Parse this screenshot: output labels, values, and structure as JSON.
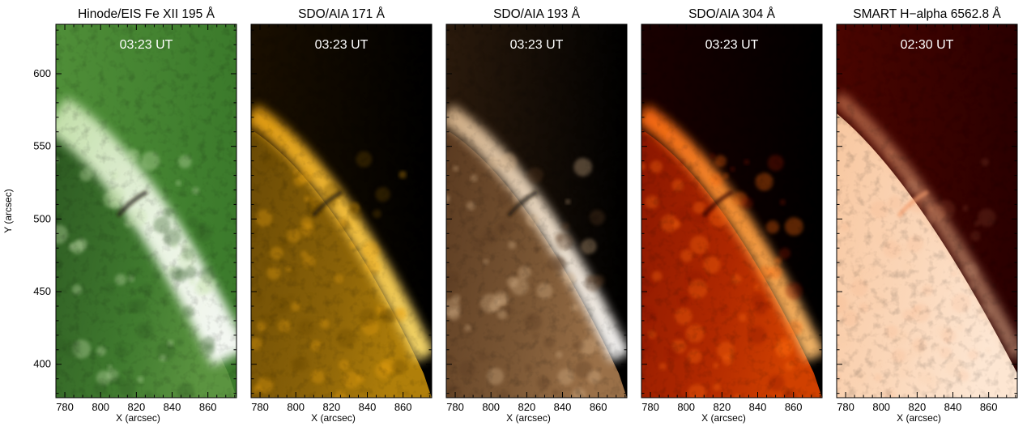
{
  "figure": {
    "panels": [
      {
        "title": "Hinode/EIS Fe XII 195 Å",
        "time": "03:23 UT",
        "palette": "eis",
        "show_ylabel": true
      },
      {
        "title": "SDO/AIA 171 Å",
        "time": "03:23 UT",
        "palette": "aia171",
        "show_ylabel": false
      },
      {
        "title": "SDO/AIA 193 Å",
        "time": "03:23 UT",
        "palette": "aia193",
        "show_ylabel": false
      },
      {
        "title": "SDO/AIA 304 Å",
        "time": "03:23 UT",
        "palette": "aia304",
        "show_ylabel": false
      },
      {
        "title": "SMART H−alpha 6562.8 Å",
        "time": "02:30 UT",
        "palette": "halpha",
        "show_ylabel": false
      }
    ],
    "x_axis": {
      "label": "X (arcsec)",
      "ticks": [
        780,
        800,
        820,
        840,
        860
      ],
      "range": [
        775,
        876
      ]
    },
    "y_axis": {
      "label": "Y (arcsec)",
      "ticks": [
        400,
        450,
        500,
        550,
        600
      ],
      "range": [
        377,
        634
      ]
    },
    "palettes": {
      "eis": {
        "disk": [
          "#2d5a22",
          "#3f7a2e",
          "#5b9440"
        ],
        "bright": [
          "#c9e3b0",
          "#f2f9ea",
          "#ffffff"
        ],
        "space": [
          "#3b7a2b",
          "#4f8e38"
        ]
      },
      "aia171": {
        "disk": [
          "#6a4a05",
          "#8a6208",
          "#b07f0a"
        ],
        "bright": [
          "#e8a010",
          "#ffc840",
          "#ffe070"
        ],
        "space": [
          "#000000",
          "#1a0f00"
        ]
      },
      "aia193": {
        "disk": [
          "#5a3a20",
          "#7a5634",
          "#9a7048"
        ],
        "bright": [
          "#d8b48a",
          "#f3e2cc",
          "#ffffff"
        ],
        "space": [
          "#000000",
          "#2a1a0c"
        ]
      },
      "aia304": {
        "disk": [
          "#8a1600",
          "#b02800",
          "#d04000"
        ],
        "bright": [
          "#ff6a10",
          "#ff9a3a",
          "#ffc070"
        ],
        "space": [
          "#000000",
          "#1a0000"
        ]
      },
      "halpha": {
        "disk": [
          "#f8c7a0",
          "#fbd8bb",
          "#fde6d2"
        ],
        "bright": [
          "#f29a6a",
          "#f6b58a",
          "#fac8a4"
        ],
        "space": [
          "#2a0000",
          "#4a0500"
        ]
      }
    }
  }
}
